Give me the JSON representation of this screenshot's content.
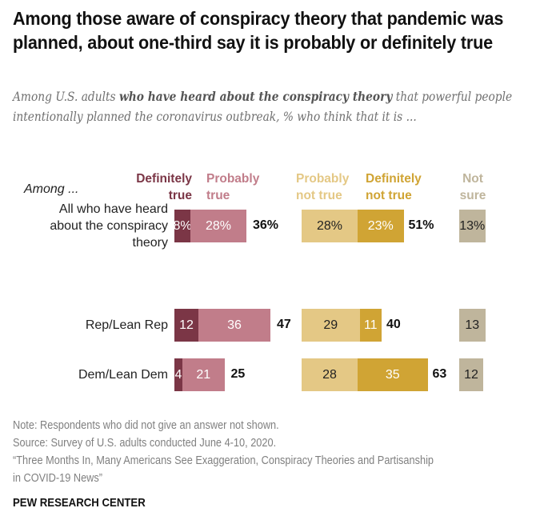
{
  "title": "Among those aware of conspiracy theory that pandemic was planned, about one-third say it is probably or definitely true",
  "subtitle": {
    "pre": "Among U.S. adults ",
    "bold": "who have heard about the conspiracy theory",
    "post": " that powerful people intentionally planned the coronavirus outbreak, % who think that it is ..."
  },
  "colors": {
    "definitely_true": "#7B3646",
    "probably_true": "#C17D8A",
    "probably_not_true": "#E4C885",
    "definitely_not_true": "#D0A434",
    "not_sure": "#BFB59C"
  },
  "chart_data": {
    "type": "bar",
    "orientation": "horizontal-diverging-stacked",
    "title": "Among those aware of conspiracy theory that pandemic was planned, about one-third say it is probably or definitely true",
    "row_header": "Among ...",
    "categories": [
      "All who have heard about the conspiracy theory",
      "Rep/Lean Rep",
      "Dem/Lean Dem"
    ],
    "series": [
      {
        "name": "Definitely true",
        "group": "true",
        "values": [
          8,
          12,
          4
        ]
      },
      {
        "name": "Probably true",
        "group": "true",
        "values": [
          28,
          36,
          21
        ]
      },
      {
        "name": "Probably not true",
        "group": "not_true",
        "values": [
          28,
          29,
          28
        ]
      },
      {
        "name": "Definitely not true",
        "group": "not_true",
        "values": [
          23,
          11,
          35
        ]
      },
      {
        "name": "Not sure",
        "group": "not_sure",
        "values": [
          13,
          13,
          12
        ]
      }
    ],
    "nets": {
      "true": [
        "36%",
        "47",
        "25"
      ],
      "not_true": [
        "51%",
        "40",
        "63"
      ]
    },
    "value_labels": {
      "Definitely true": [
        "8%",
        "12",
        "4"
      ],
      "Probably true": [
        "28%",
        "36",
        "21"
      ],
      "Probably not true": [
        "28%",
        "29",
        "28"
      ],
      "Definitely not true": [
        "23%",
        "11",
        "35"
      ],
      "Not sure": [
        "13%",
        "13",
        "12"
      ]
    },
    "legend": {
      "definitely_true": [
        "Definitely",
        "true"
      ],
      "probably_true": [
        "Probably",
        "true"
      ],
      "probably_not_true": [
        "Probably",
        "not true"
      ],
      "definitely_not_true": [
        "Definitely",
        "not true"
      ],
      "not_sure": [
        "Not",
        "sure"
      ]
    },
    "legend_placement": "top",
    "grid": false
  },
  "rows": [
    {
      "label_lines": [
        "All who have heard",
        "about the conspiracy",
        "theory"
      ]
    },
    {
      "label_lines": [
        "Rep/Lean Rep"
      ]
    },
    {
      "label_lines": [
        "Dem/Lean Dem"
      ]
    }
  ],
  "footer": {
    "note": "Note: Respondents who did not give an answer not shown.",
    "source": "Source: Survey of U.S. adults conducted June 4-10, 2020.",
    "report_line1": "“Three Months In, Many Americans See Exaggeration, Conspiracy Theories and Partisanship",
    "report_line2": "in COVID-19 News”",
    "brand": "PEW RESEARCH CENTER"
  }
}
